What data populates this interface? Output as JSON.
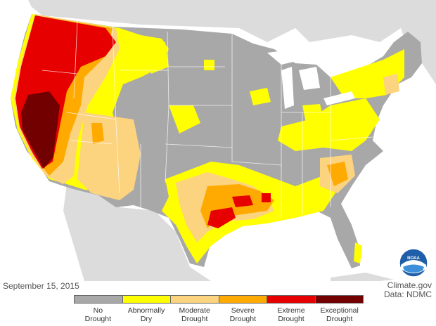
{
  "map": {
    "date": "September 15, 2015",
    "credit_line1": "Climate.gov",
    "credit_line2": "Data: NDMC",
    "logo_text": "NOAA",
    "colors": {
      "ocean": "#ffffff",
      "land_outside": "#dcdcdc",
      "state_border": "#ffffff"
    },
    "legend": [
      {
        "line1": "No",
        "line2": "Drought",
        "color": "#a8a8a8"
      },
      {
        "line1": "Abnormally",
        "line2": "Dry",
        "color": "#ffff00"
      },
      {
        "line1": "Moderate",
        "line2": "Drought",
        "color": "#fcd37f"
      },
      {
        "line1": "Severe",
        "line2": "Drought",
        "color": "#ffaa00"
      },
      {
        "line1": "Extreme",
        "line2": "Drought",
        "color": "#e60000"
      },
      {
        "line1": "Exceptional",
        "line2": "Drought",
        "color": "#730000"
      }
    ]
  }
}
